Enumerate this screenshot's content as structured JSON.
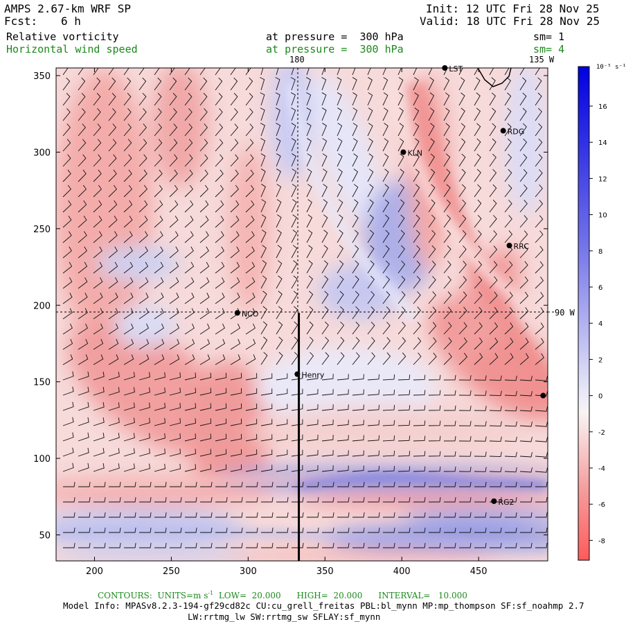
{
  "header": {
    "model": "AMPS 2.67-km WRF SP",
    "fcst_label": "Fcst:",
    "fcst_value": "6 h",
    "init": "Init: 12 UTC Fri 28 Nov 25",
    "valid": "Valid: 18 UTC Fri 28 Nov 25",
    "field1": "Relative vorticity",
    "field1_level": "at pressure =  300 hPa",
    "field1_sm": "sm= 1",
    "field2": "Horizontal wind speed",
    "field2_level": "at pressure =  300 hPa",
    "field2_sm": "sm= 4"
  },
  "map": {
    "lon_labels": {
      "top_180": "180",
      "top_135w": "135 W",
      "right_90w": "90 W"
    },
    "y_ticks": [
      50,
      100,
      150,
      200,
      250,
      300,
      350
    ],
    "x_ticks": [
      200,
      250,
      300,
      350,
      400,
      450
    ],
    "x_range": [
      175,
      495
    ],
    "y_range": [
      33,
      355
    ],
    "stations": [
      {
        "name": "KLN",
        "x": 401,
        "y": 300
      },
      {
        "name": "RDG",
        "x": 466,
        "y": 314
      },
      {
        "name": "RRC",
        "x": 470,
        "y": 239
      },
      {
        "name": "NCO",
        "x": 293,
        "y": 195
      },
      {
        "name": "Henry",
        "x": 332,
        "y": 155
      },
      {
        "name": "RG2",
        "x": 460,
        "y": 72
      },
      {
        "name": "LST",
        "x": 428,
        "y": 355
      },
      {
        "name": "",
        "x": 492,
        "y": 141
      }
    ],
    "cross_section_x": 333,
    "cross_section_y_range": [
      33,
      195
    ]
  },
  "colorbar": {
    "unit": "10⁻⁵ s⁻¹",
    "labels": [
      "16",
      "14",
      "12",
      "10",
      "8",
      "6",
      "4",
      "2",
      "0",
      "-2",
      "-4",
      "-6",
      "-8"
    ],
    "positive_color": "#0000e0",
    "negative_color": "#ff5a5a"
  },
  "footer": {
    "contours": "CONTOURS:  UNITS=m s",
    "contours_exp": "-1",
    "contours_rest": "  LOW=  20.000      HIGH=  20.000      INTERVAL=   10.000",
    "model_info": "Model Info: MPASv8.2.3-194-gf29cd82c CU:cu_grell_freitas PBL:bl_mynn MP:mp_thompson SF:sf_noahmp 2.7",
    "model_info2": "LW:rrtmg_lw SW:rrtmg_sw SFLAY:sf_mynn"
  }
}
